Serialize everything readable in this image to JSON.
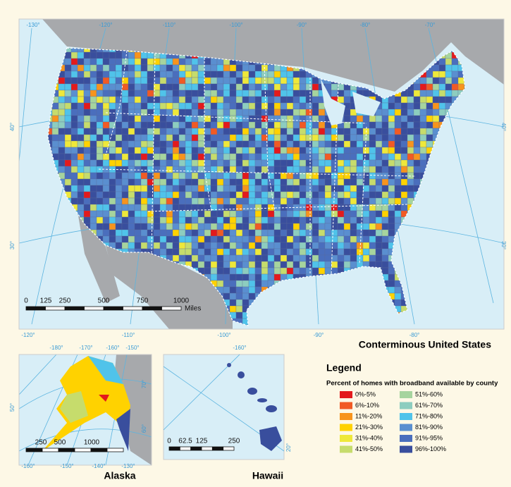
{
  "main_map": {
    "title": "Conterminous United States",
    "top_longitudes": [
      "-130°",
      "-120°",
      "-110°",
      "-100°",
      "-90°",
      "-80°",
      "-70°"
    ],
    "bottom_longitudes": [
      "-120°",
      "-110°",
      "-100°",
      "-90°",
      "-80°"
    ],
    "latitudes": [
      "40°",
      "30°"
    ],
    "scale": [
      "0",
      "125",
      "250",
      "500",
      "750",
      "1000"
    ],
    "scale_unit": "Miles"
  },
  "alaska": {
    "title": "Alaska",
    "top_longitudes": [
      "-180°",
      "-170°",
      "-160°",
      "-150°"
    ],
    "latitudes": [
      "70°",
      "60°",
      "50°"
    ],
    "bottom_longitudes": [
      "-160°",
      "-150°",
      "-140°",
      "-130°"
    ],
    "scale": [
      "250",
      "500",
      "1000"
    ]
  },
  "hawaii": {
    "title": "Hawaii",
    "longitude": "-160°",
    "latitude": "20°",
    "scale": [
      "0",
      "62.5",
      "125",
      "250"
    ]
  },
  "legend": {
    "title": "Legend",
    "subtitle": "Percent of homes with broadband available by county",
    "items": [
      {
        "label": "0%-5%",
        "color": "#e31a1c"
      },
      {
        "label": "6%-10%",
        "color": "#f15a24"
      },
      {
        "label": "11%-20%",
        "color": "#f7941d"
      },
      {
        "label": "21%-30%",
        "color": "#ffd200"
      },
      {
        "label": "31%-40%",
        "color": "#eee83a"
      },
      {
        "label": "41%-50%",
        "color": "#c6dc6c"
      },
      {
        "label": "51%-60%",
        "color": "#a6d49e"
      },
      {
        "label": "61%-70%",
        "color": "#8dcdbf"
      },
      {
        "label": "71%-80%",
        "color": "#50c3ea"
      },
      {
        "label": "81%-90%",
        "color": "#5a8fd0"
      },
      {
        "label": "91%-95%",
        "color": "#4a6ebd"
      },
      {
        "label": "96%-100%",
        "color": "#394e9d"
      }
    ]
  }
}
